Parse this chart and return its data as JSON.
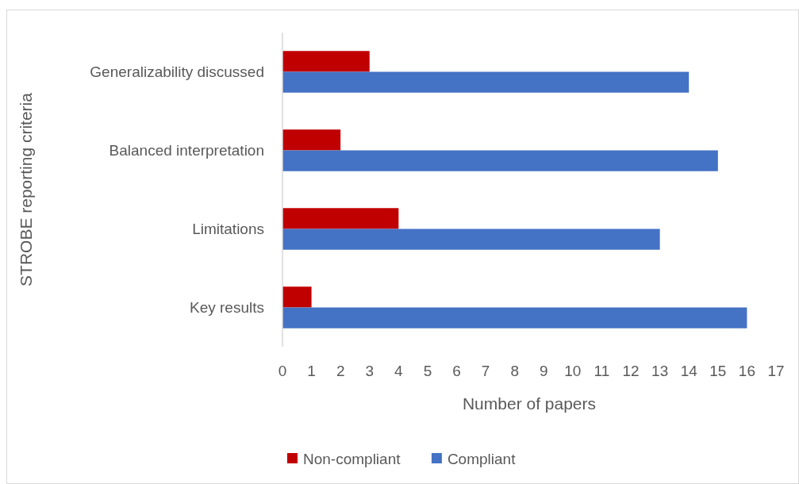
{
  "chart_data": {
    "type": "bar",
    "orientation": "horizontal",
    "xlabel": "Number of papers",
    "ylabel": "STROBE reporting criteria",
    "categories": [
      "Generalizability discussed",
      "Balanced interpretation",
      "Limitations",
      "Key results"
    ],
    "series": [
      {
        "name": "Non-compliant",
        "color": "#c00000",
        "values": [
          3,
          2,
          4,
          1
        ]
      },
      {
        "name": "Compliant",
        "color": "#4472c4",
        "values": [
          14,
          15,
          13,
          16
        ]
      }
    ],
    "xlim": [
      0,
      17
    ],
    "xticks": [
      0,
      1,
      2,
      3,
      4,
      5,
      6,
      7,
      8,
      9,
      10,
      11,
      12,
      13,
      14,
      15,
      16,
      17
    ],
    "legend": "bottom"
  }
}
